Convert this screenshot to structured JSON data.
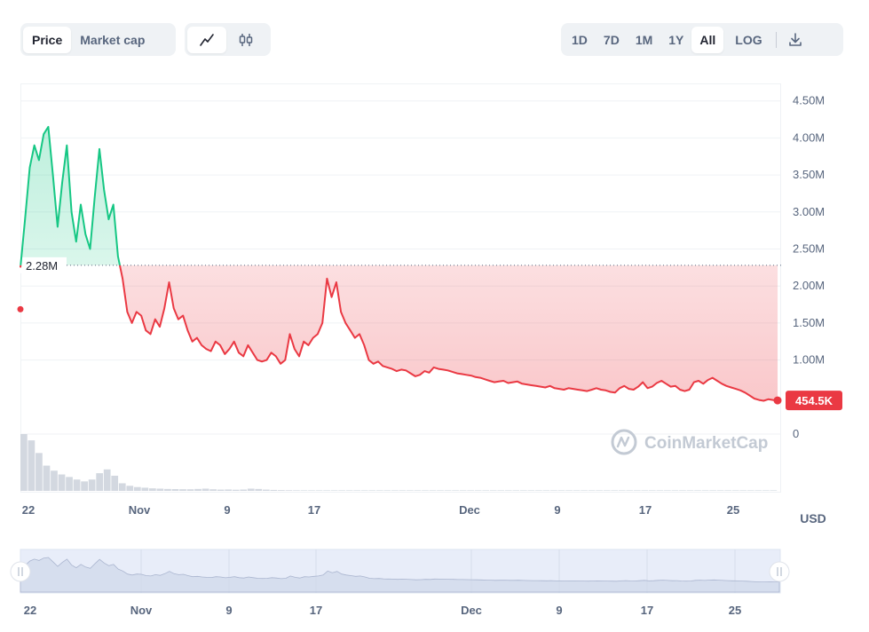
{
  "toggles": {
    "type": {
      "options": [
        "Price",
        "Market cap"
      ],
      "active": "Price"
    },
    "style": {
      "options": [
        "line-chart-icon",
        "candlestick-icon"
      ],
      "active": "line-chart-icon"
    },
    "range": {
      "options": [
        "1D",
        "7D",
        "1M",
        "1Y",
        "All"
      ],
      "active": "All",
      "log_label": "LOG"
    },
    "download_icon": "download-icon"
  },
  "chart_data": {
    "type": "area",
    "y_ticks": [
      "4.50M",
      "4.00M",
      "3.50M",
      "3.00M",
      "2.50M",
      "2.00M",
      "1.50M",
      "1.00M",
      "0"
    ],
    "x_ticks": [
      "22",
      "Nov",
      "9",
      "17",
      "Dec",
      "9",
      "17",
      "25"
    ],
    "currency_label": "USD",
    "baseline_value": 2280000,
    "baseline_label": "2.28M",
    "current_value": 454500,
    "current_label": "454.5K",
    "ylim": [
      0,
      4700000
    ],
    "colors": {
      "up": "#16c784",
      "down": "#ea3943"
    },
    "watermark": "CoinMarketCap",
    "series": [
      {
        "values": [
          2250000,
          2900000,
          3600000,
          3900000,
          3700000,
          4050000,
          4150000,
          3500000,
          2800000,
          3400000,
          3900000,
          3000000,
          2600000,
          3100000,
          2700000,
          2500000,
          3200000,
          3850000,
          3300000,
          2900000,
          3100000,
          2400000,
          2100000,
          1650000,
          1500000,
          1650000,
          1600000,
          1400000,
          1350000,
          1550000,
          1450000,
          1700000,
          2050000,
          1700000,
          1550000,
          1600000,
          1400000,
          1250000,
          1300000,
          1200000,
          1150000,
          1120000,
          1250000,
          1200000,
          1080000,
          1150000,
          1250000,
          1100000,
          1050000,
          1200000,
          1100000,
          1000000,
          980000,
          1000000,
          1100000,
          1050000,
          950000,
          1000000,
          1350000,
          1150000,
          1050000,
          1250000,
          1200000,
          1300000,
          1350000,
          1500000,
          2100000,
          1850000,
          2050000,
          1650000,
          1500000,
          1400000,
          1300000,
          1350000,
          1200000,
          1000000,
          950000,
          980000,
          920000,
          900000,
          880000,
          850000,
          870000,
          860000,
          820000,
          780000,
          800000,
          850000,
          830000,
          900000,
          880000,
          870000,
          860000,
          840000,
          820000,
          810000,
          800000,
          790000,
          770000,
          760000,
          740000,
          720000,
          700000,
          710000,
          720000,
          690000,
          700000,
          710000,
          680000,
          670000,
          660000,
          650000,
          640000,
          630000,
          650000,
          620000,
          610000,
          600000,
          620000,
          610000,
          600000,
          590000,
          580000,
          600000,
          620000,
          600000,
          590000,
          570000,
          560000,
          620000,
          650000,
          610000,
          600000,
          640000,
          700000,
          620000,
          640000,
          690000,
          720000,
          680000,
          640000,
          650000,
          600000,
          580000,
          600000,
          700000,
          720000,
          680000,
          730000,
          760000,
          720000,
          680000,
          650000,
          630000,
          610000,
          590000,
          560000,
          520000,
          480000,
          460000,
          450000,
          470000,
          460000,
          454500
        ]
      }
    ],
    "volume": [
      90000,
      80000,
      60000,
      40000,
      32000,
      26000,
      22000,
      18000,
      15000,
      18000,
      28000,
      34000,
      24000,
      12000,
      8000,
      6000,
      5000,
      4000,
      3500,
      3000,
      2800,
      2600,
      2500,
      3000,
      3500,
      2500,
      2000,
      2200,
      1800,
      2100,
      3500,
      3000,
      2000,
      1500,
      1200,
      1000,
      900,
      800,
      700,
      600,
      600,
      500,
      500,
      500,
      400,
      400,
      400,
      400,
      400,
      400,
      500,
      400,
      400,
      400,
      600,
      500,
      400,
      400,
      400,
      400,
      400,
      400,
      500,
      400,
      400,
      400,
      400,
      400,
      400,
      400,
      400,
      400,
      400,
      400,
      400,
      400,
      400,
      400,
      400,
      400,
      400,
      400,
      400,
      400,
      400,
      400,
      400,
      400,
      400,
      400,
      400,
      400,
      400,
      400,
      400,
      400,
      400,
      400,
      400,
      400
    ]
  }
}
